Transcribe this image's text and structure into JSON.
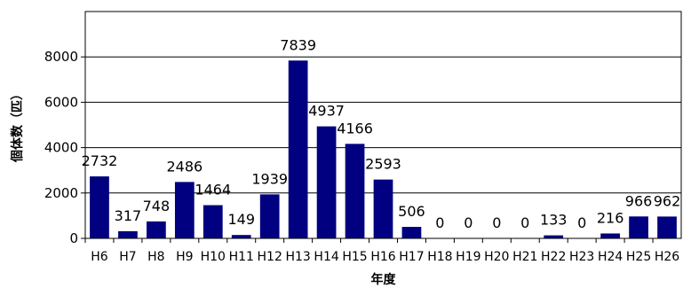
{
  "chart_data": {
    "type": "bar",
    "title": "",
    "xlabel": "年度",
    "ylabel": "個体数（匹）",
    "ylim": [
      0,
      10000
    ],
    "yticks": [
      "0",
      "2000",
      "4000",
      "6000",
      "8000"
    ],
    "grid": true,
    "legend": "none",
    "bar_color": "#000080",
    "categories": [
      "H6",
      "H7",
      "H8",
      "H9",
      "H10",
      "H11",
      "H12",
      "H13",
      "H14",
      "H15",
      "H16",
      "H17",
      "H18",
      "H19",
      "H20",
      "H21",
      "H22",
      "H23",
      "H24",
      "H25",
      "H26"
    ],
    "values": [
      2732,
      317,
      748,
      2486,
      1464,
      149,
      1939,
      7839,
      4937,
      4166,
      2593,
      506,
      0,
      0,
      0,
      0,
      133,
      0,
      216,
      966,
      962
    ],
    "data_labels": [
      "2732",
      "317",
      "748",
      "2486",
      "1464",
      "149",
      "1939",
      "7839",
      "4937",
      "4166",
      "2593",
      "506",
      "0",
      "0",
      "0",
      "0",
      "133",
      "0",
      "216",
      "966",
      "962"
    ]
  }
}
